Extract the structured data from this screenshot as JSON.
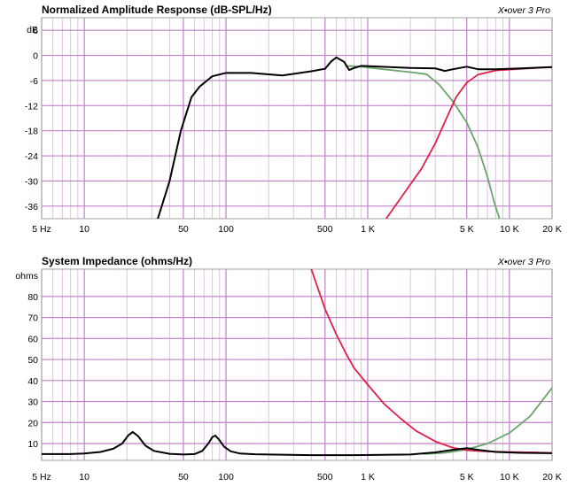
{
  "chart_data": [
    {
      "type": "line",
      "title": "Normalized Amplitude Response (dB-SPL/Hz)",
      "brand": "X•over 3 Pro",
      "x_scale": "log",
      "xlim": [
        5,
        20000
      ],
      "ylim": [
        -39,
        9
      ],
      "y_unit_label": "dB",
      "y_ticks": [
        6,
        0,
        -6,
        -12,
        -18,
        -24,
        -30,
        -36
      ],
      "y_tick_labels": [
        "6",
        "0",
        "-6",
        "-12",
        "-18",
        "-24",
        "-30",
        "-36"
      ],
      "x_ticks": [
        5,
        10,
        50,
        100,
        500,
        1000,
        5000,
        10000,
        20000
      ],
      "x_tick_labels": [
        "5 Hz",
        "10",
        "50",
        "100",
        "500",
        "1 K",
        "5 K",
        "10 K",
        "20 K"
      ],
      "colors": {
        "background": "#ffffff",
        "major_grid": "#c080c8",
        "minor_grid": "#e6bfe9",
        "frame": "#a0a0a0"
      },
      "series": [
        {
          "color": "#6aa56a",
          "points": [
            [
              700,
              -2.5
            ],
            [
              900,
              -2.7
            ],
            [
              1200,
              -3.2
            ],
            [
              2000,
              -4.0
            ],
            [
              2600,
              -4.5
            ],
            [
              3200,
              -7
            ],
            [
              4000,
              -11
            ],
            [
              5000,
              -16
            ],
            [
              6000,
              -22
            ],
            [
              7000,
              -29
            ],
            [
              7800,
              -35
            ],
            [
              8500,
              -39
            ]
          ]
        },
        {
          "color": "#e0204a",
          "points": [
            [
              1350,
              -39
            ],
            [
              1800,
              -33
            ],
            [
              2400,
              -27
            ],
            [
              3000,
              -21
            ],
            [
              3600,
              -15
            ],
            [
              4200,
              -10
            ],
            [
              5000,
              -6.5
            ],
            [
              6000,
              -4.6
            ],
            [
              8000,
              -3.6
            ],
            [
              10000,
              -3.4
            ],
            [
              15000,
              -3.0
            ],
            [
              20000,
              -2.8
            ]
          ]
        },
        {
          "color": "#000000",
          "points": [
            [
              33,
              -39
            ],
            [
              40,
              -30
            ],
            [
              48,
              -18
            ],
            [
              57,
              -10
            ],
            [
              65,
              -7.5
            ],
            [
              80,
              -5.0
            ],
            [
              100,
              -4.2
            ],
            [
              150,
              -4.2
            ],
            [
              250,
              -4.8
            ],
            [
              400,
              -3.8
            ],
            [
              500,
              -3.2
            ],
            [
              550,
              -1.5
            ],
            [
              600,
              -0.5
            ],
            [
              680,
              -1.5
            ],
            [
              740,
              -3.5
            ],
            [
              800,
              -3.0
            ],
            [
              900,
              -2.5
            ],
            [
              1200,
              -2.7
            ],
            [
              2000,
              -3.0
            ],
            [
              3000,
              -3.1
            ],
            [
              3500,
              -3.7
            ],
            [
              4000,
              -3.3
            ],
            [
              5000,
              -2.7
            ],
            [
              6000,
              -3.3
            ],
            [
              8000,
              -3.3
            ],
            [
              12000,
              -3.1
            ],
            [
              20000,
              -2.8
            ]
          ]
        }
      ]
    },
    {
      "type": "line",
      "title": "System Impedance (ohms/Hz)",
      "brand": "X•over 3 Pro",
      "x_scale": "log",
      "xlim": [
        5,
        20000
      ],
      "ylim": [
        2,
        93
      ],
      "y_unit_label": "ohms",
      "y_ticks": [
        80,
        70,
        60,
        50,
        40,
        30,
        20,
        10
      ],
      "y_tick_labels": [
        "80",
        "70",
        "60",
        "50",
        "40",
        "30",
        "20",
        "10"
      ],
      "x_ticks": [
        5,
        10,
        50,
        100,
        500,
        1000,
        5000,
        10000,
        20000
      ],
      "x_tick_labels": [
        "5 Hz",
        "10",
        "50",
        "100",
        "500",
        "1 K",
        "5 K",
        "10 K",
        "20 K"
      ],
      "colors": {
        "background": "#ffffff",
        "major_grid": "#c080c8",
        "minor_grid": "#e6bfe9",
        "frame": "#a0a0a0"
      },
      "series": [
        {
          "color": "#6aa56a",
          "points": [
            [
              2500,
              5.0
            ],
            [
              3500,
              5.6
            ],
            [
              5000,
              7.2
            ],
            [
              7000,
              10.0
            ],
            [
              10000,
              15.0
            ],
            [
              14000,
              23.0
            ],
            [
              20000,
              36.5
            ]
          ]
        },
        {
          "color": "#e0204a",
          "points": [
            [
              400,
              93
            ],
            [
              500,
              74
            ],
            [
              600,
              62
            ],
            [
              700,
              53
            ],
            [
              800,
              46
            ],
            [
              1000,
              38
            ],
            [
              1300,
              29
            ],
            [
              1700,
              22
            ],
            [
              2200,
              16
            ],
            [
              3000,
              11
            ],
            [
              4000,
              8.0
            ],
            [
              5000,
              6.8
            ],
            [
              7000,
              6.2
            ],
            [
              10000,
              6.0
            ],
            [
              15000,
              5.8
            ],
            [
              20000,
              5.5
            ]
          ]
        },
        {
          "color": "#000000",
          "points": [
            [
              5,
              5.0
            ],
            [
              8,
              5.0
            ],
            [
              10,
              5.3
            ],
            [
              13,
              6.0
            ],
            [
              16,
              7.5
            ],
            [
              18.5,
              10.0
            ],
            [
              20.5,
              14.0
            ],
            [
              22,
              15.5
            ],
            [
              24,
              13.5
            ],
            [
              27,
              9.0
            ],
            [
              31,
              6.5
            ],
            [
              40,
              5.1
            ],
            [
              50,
              4.8
            ],
            [
              60,
              5.0
            ],
            [
              68,
              6.5
            ],
            [
              75,
              10.0
            ],
            [
              80,
              13.0
            ],
            [
              84,
              13.8
            ],
            [
              89,
              12.0
            ],
            [
              97,
              8.5
            ],
            [
              108,
              6.3
            ],
            [
              125,
              5.3
            ],
            [
              160,
              4.9
            ],
            [
              250,
              4.7
            ],
            [
              400,
              4.5
            ],
            [
              800,
              4.5
            ],
            [
              2000,
              4.8
            ],
            [
              3000,
              5.8
            ],
            [
              4000,
              7.0
            ],
            [
              5000,
              7.8
            ],
            [
              6000,
              7.0
            ],
            [
              8000,
              6.0
            ],
            [
              12000,
              5.6
            ],
            [
              20000,
              5.4
            ]
          ]
        }
      ]
    }
  ]
}
